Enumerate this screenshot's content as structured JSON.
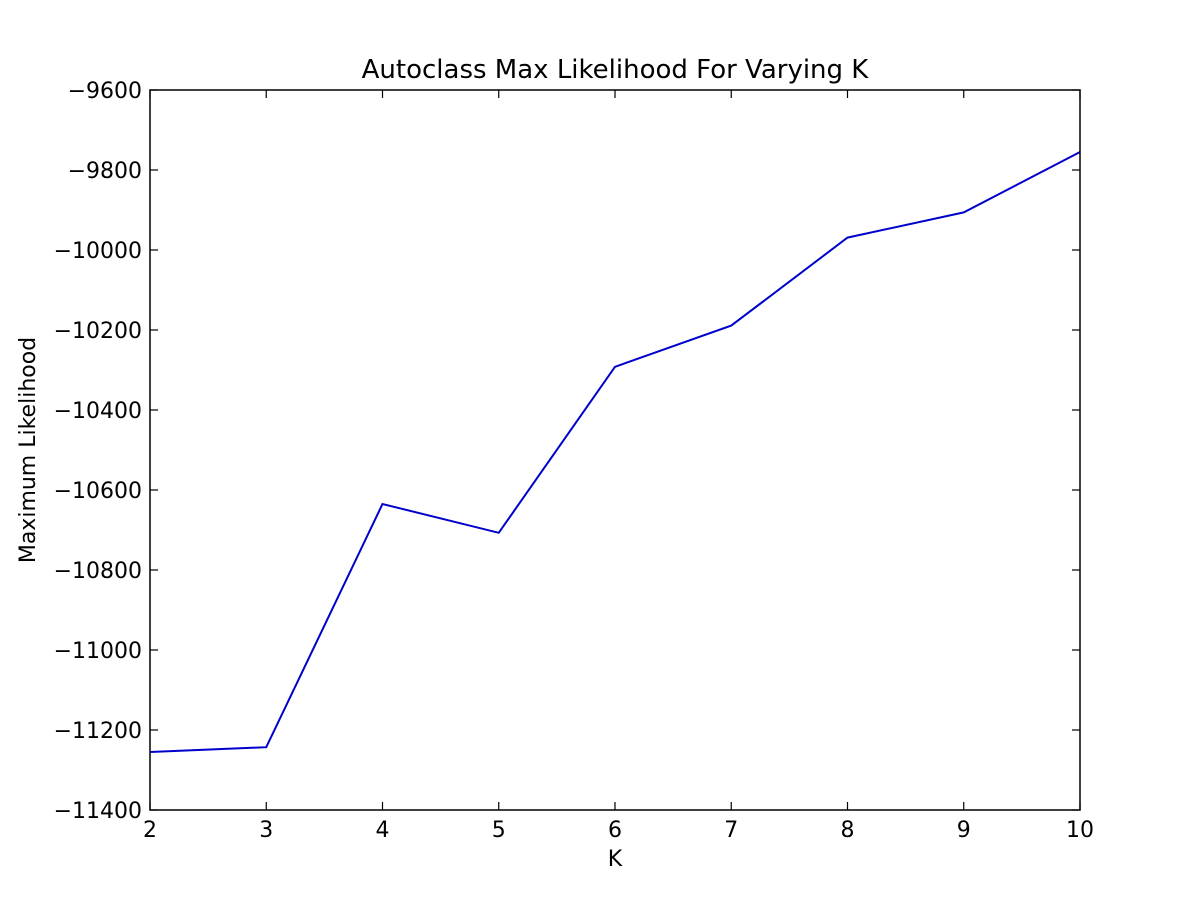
{
  "chart_data": {
    "type": "line",
    "title": "Autoclass Max Likelihood For Varying K",
    "xlabel": "K",
    "ylabel": "Maximum Likelihood",
    "x": [
      2,
      3,
      4,
      5,
      6,
      7,
      8,
      9,
      10
    ],
    "series": [
      {
        "values": [
          -11255,
          -11243,
          -10635,
          -10707,
          -10292,
          -10189,
          -9969,
          -9906,
          -9755
        ],
        "color": "#0000cc"
      }
    ],
    "xlim": [
      2,
      10
    ],
    "ylim": [
      -11400,
      -9600
    ],
    "xticks": [
      2,
      3,
      4,
      5,
      6,
      7,
      8,
      9,
      10
    ],
    "yticks": [
      -11400,
      -11200,
      -11000,
      -10800,
      -10600,
      -10400,
      -10200,
      -10000,
      -9800,
      -9600
    ],
    "xtick_labels": [
      "2",
      "3",
      "4",
      "5",
      "6",
      "7",
      "8",
      "9",
      "10"
    ],
    "ytick_labels": [
      "−11400",
      "−11200",
      "−11000",
      "−10800",
      "−10600",
      "−10400",
      "−10200",
      "−10000",
      "−9800",
      "−9600"
    ],
    "grid": false,
    "legend": "none"
  }
}
